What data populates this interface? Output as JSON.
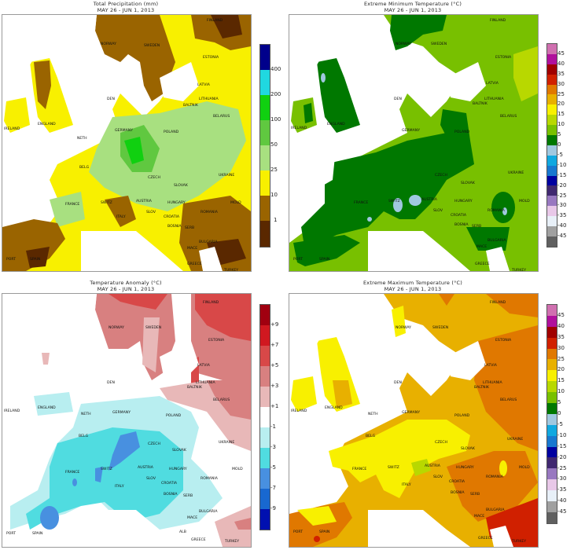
{
  "panels": [
    {
      "id": "precipitation",
      "title": "Total Precipitation (mm)",
      "date_range": "MAY 26 - JUN 1, 2013",
      "legend": {
        "colors": [
          "#00008b",
          "#20d8e0",
          "#10d010",
          "#60c840",
          "#a8e080",
          "#f8f000",
          "#9a6400",
          "#5a2800"
        ],
        "ticks": [
          "400",
          "200",
          "100",
          "50",
          "25",
          "10",
          "1"
        ]
      },
      "countries": [
        "FINLAND",
        "NORWAY",
        "SWEDEN",
        "ESTONIA",
        "LATVIA",
        "LITHUANIA",
        "BALTNIK",
        "BELARUS",
        "DEN",
        "ENGLAND",
        "IRELAND",
        "GERMANY",
        "POLAND",
        "NETH",
        "BELG",
        "CZECH",
        "SLOVAK",
        "UKRAINE",
        "FRANCE",
        "SWITZ",
        "AUSTRIA",
        "HUNGARY",
        "MOLD",
        "SLOV",
        "CROATIA",
        "ROMANIA",
        "BOSNIA",
        "SERB",
        "ITALY",
        "BULGARIA",
        "MACE",
        "PORT",
        "SPAIN",
        "GREECE",
        "TURKEY"
      ]
    },
    {
      "id": "min-temperature",
      "title": "Extreme Minimum Temperature (°C)",
      "date_range": "MAY 26 - JUN 1, 2013",
      "legend": {
        "colors": [
          "#d070b0",
          "#b0109c",
          "#a00000",
          "#d02000",
          "#e07800",
          "#e8b000",
          "#f8f000",
          "#b8d800",
          "#78c000",
          "#007800",
          "#a0c8e0",
          "#10a8e0",
          "#1878d0",
          "#0000a0",
          "#402870",
          "#9878c0",
          "#e8c8e8",
          "#e8f0f8",
          "#a0a0a0",
          "#606060"
        ],
        "ticks": [
          "45",
          "40",
          "35",
          "30",
          "25",
          "20",
          "15",
          "10",
          "5",
          "0",
          "-5",
          "-10",
          "-15",
          "-20",
          "-25",
          "-30",
          "-35",
          "-40",
          "-45"
        ]
      },
      "countries": [
        "FINLAND",
        "NORWAY",
        "SWEDEN",
        "ESTONIA",
        "LATVIA",
        "LITHUANIA",
        "BALTNIK",
        "BELARUS",
        "DEN",
        "ENGLAND",
        "IRELAND",
        "GERMANY",
        "POLAND",
        "CZECH",
        "SLOVAK",
        "UKRAINE",
        "FRANCE",
        "SWITZ",
        "AUSTRIA",
        "HUNGARY",
        "MOLD",
        "SLOV",
        "CROATIA",
        "ROMANIA",
        "BOSNIA",
        "SERB",
        "BULGARIA",
        "MACE",
        "PORT",
        "SPAIN",
        "GREECE",
        "TURKEY"
      ]
    },
    {
      "id": "temperature-anomaly",
      "title": "Temperature Anomaly (°C)",
      "date_range": "MAY 26 - JUN 1, 2013",
      "legend": {
        "colors": [
          "#a00010",
          "#d01820",
          "#d84848",
          "#d88080",
          "#e8b8b8",
          "#ffffff",
          "#b8eef0",
          "#50dce0",
          "#4890e0",
          "#1868d0",
          "#0010b0"
        ],
        "ticks": [
          "+9",
          "+7",
          "+5",
          "+3",
          "+1",
          "-1",
          "-3",
          "-5",
          "-7",
          "-9"
        ]
      },
      "countries": [
        "FINLAND",
        "NORWAY",
        "SWEDEN",
        "ESTONIA",
        "LATVIA",
        "LITHUANIA",
        "BALTNIK",
        "BELARUS",
        "DEN",
        "ENGLAND",
        "IRELAND",
        "GERMANY",
        "POLAND",
        "NETH",
        "BELG",
        "CZECH",
        "SLOVAK",
        "UKRAINE",
        "FRANCE",
        "SWITZ",
        "AUSTRIA",
        "HUNGARY",
        "MOLD",
        "SLOV",
        "CROATIA",
        "ROMANIA",
        "BOSNIA",
        "SERB",
        "ITALY",
        "BULGARIA",
        "MACE",
        "ALB",
        "PORT",
        "SPAIN",
        "GREECE",
        "TURKEY"
      ]
    },
    {
      "id": "max-temperature",
      "title": "Extreme Maximum Temperature (°C)",
      "date_range": "MAY 26 - JUN 1, 2013",
      "legend": {
        "colors": [
          "#d070b0",
          "#b0109c",
          "#a00000",
          "#d02000",
          "#e07800",
          "#e8b000",
          "#f8f000",
          "#b8d800",
          "#78c000",
          "#007800",
          "#a0c8e0",
          "#10a8e0",
          "#1878d0",
          "#0000a0",
          "#402870",
          "#9878c0",
          "#e8c8e8",
          "#e8f0f8",
          "#a0a0a0",
          "#606060"
        ],
        "ticks": [
          "45",
          "40",
          "35",
          "30",
          "25",
          "20",
          "15",
          "10",
          "5",
          "0",
          "-5",
          "-10",
          "-15",
          "-20",
          "-25",
          "-30",
          "-35",
          "-40",
          "-45"
        ]
      },
      "countries": [
        "FINLAND",
        "NORWAY",
        "SWEDEN",
        "ESTONIA",
        "LATVIA",
        "LITHUANIA",
        "BALTNIK",
        "BELARUS",
        "DEN",
        "ENGLAND",
        "IRELAND",
        "GERMANY",
        "POLAND",
        "NETH",
        "BELG",
        "CZECH",
        "SLOVAK",
        "UKRAINE",
        "FRANCE",
        "SWITZ",
        "AUSTRIA",
        "HUNGARY",
        "MOLD",
        "SLOV",
        "CROATIA",
        "ROMANIA",
        "BOSNIA",
        "SERB",
        "ITALY",
        "BULGARIA",
        "MACE",
        "PORT",
        "SPAIN",
        "GREECE",
        "TURKEY"
      ]
    }
  ]
}
